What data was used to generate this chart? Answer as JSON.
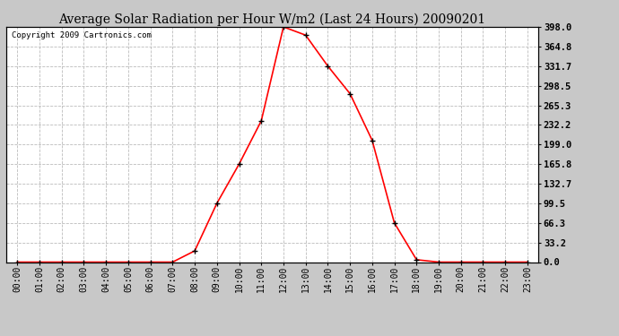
{
  "title": "Average Solar Radiation per Hour W/m2 (Last 24 Hours) 20090201",
  "copyright": "Copyright 2009 Cartronics.com",
  "hours": [
    "00:00",
    "01:00",
    "02:00",
    "03:00",
    "04:00",
    "05:00",
    "06:00",
    "07:00",
    "08:00",
    "09:00",
    "10:00",
    "11:00",
    "12:00",
    "13:00",
    "14:00",
    "15:00",
    "16:00",
    "17:00",
    "18:00",
    "19:00",
    "20:00",
    "21:00",
    "22:00",
    "23:00"
  ],
  "values": [
    0.0,
    0.0,
    0.0,
    0.0,
    0.0,
    0.0,
    0.0,
    0.0,
    19.0,
    99.5,
    165.8,
    239.0,
    398.0,
    384.0,
    331.7,
    285.0,
    206.0,
    66.3,
    4.0,
    0.0,
    0.0,
    0.0,
    0.0,
    0.0
  ],
  "yticks": [
    0.0,
    33.2,
    66.3,
    99.5,
    132.7,
    165.8,
    199.0,
    232.2,
    265.3,
    298.5,
    331.7,
    364.8,
    398.0
  ],
  "ymax": 398.0,
  "line_color": "red",
  "marker": "+",
  "marker_color": "black",
  "bg_color": "#c8c8c8",
  "plot_bg_color": "#ffffff",
  "grid_color": "#bbbbbb",
  "title_fontsize": 10,
  "copyright_fontsize": 6.5,
  "tick_fontsize": 7,
  "ytick_fontsize": 7.5
}
